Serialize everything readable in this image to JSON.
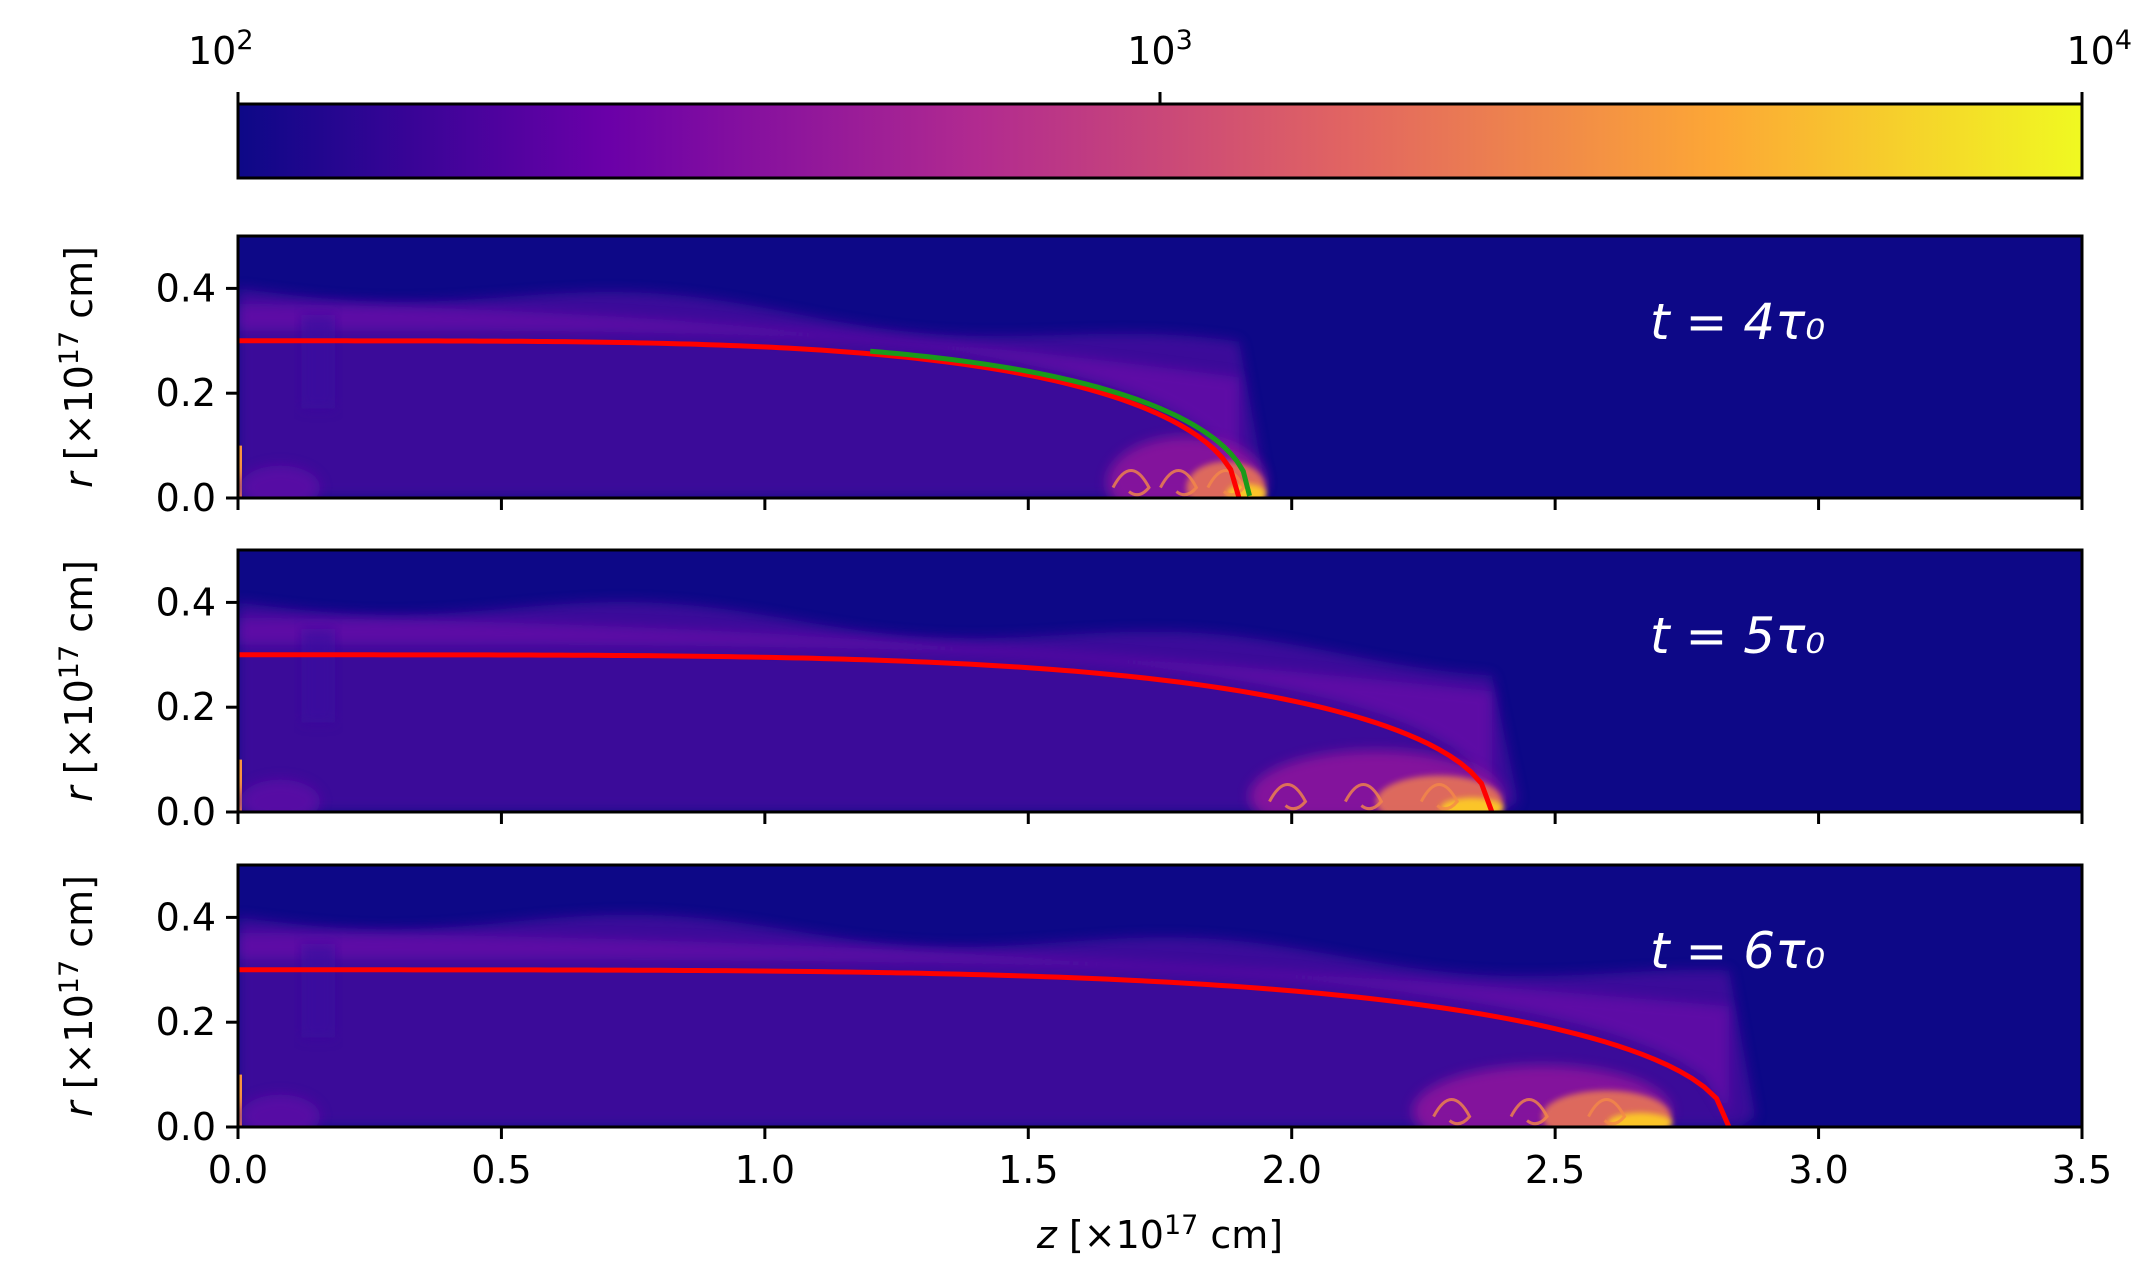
{
  "chart_data": {
    "type": "heatmap",
    "colormap": "plasma",
    "colorbar": {
      "scale": "log",
      "range": [
        100,
        10000
      ],
      "ticks": [
        {
          "value": 100,
          "base": "10",
          "exp": "2"
        },
        {
          "value": 1000,
          "base": "10",
          "exp": "3"
        },
        {
          "value": 10000,
          "base": "10",
          "exp": "4"
        }
      ],
      "colors": [
        "#0d0887",
        "#6a00a8",
        "#b12a90",
        "#e16462",
        "#fca636",
        "#f0f921"
      ]
    },
    "xlabel": {
      "var": "z",
      "pre": " [×10",
      "exp": "17",
      "post": " cm]"
    },
    "ylabel": {
      "var": "r",
      "pre": " [×10",
      "exp": "17",
      "post": " cm]"
    },
    "xlim": [
      0,
      3.5
    ],
    "ylim": [
      0,
      0.5
    ],
    "xticks": [
      "0.0",
      "0.5",
      "1.0",
      "1.5",
      "2.0",
      "2.5",
      "3.0",
      "3.5"
    ],
    "yticks": [
      "0.0",
      "0.2",
      "0.4"
    ],
    "background_color": "#0d0887",
    "panels": [
      {
        "label": "t = 4τ₀",
        "front_z": 1.9,
        "analytic_curve": {
          "color": "#ff0000",
          "r0": 0.3,
          "z_end": 1.9
        },
        "secondary_curve": {
          "color": "#1a9a1a",
          "z_start": 1.2,
          "z_end": 1.92
        },
        "shocked_region": [
          1.65,
          1.95
        ]
      },
      {
        "label": "t = 5τ₀",
        "front_z": 2.38,
        "analytic_curve": {
          "color": "#ff0000",
          "r0": 0.3,
          "z_end": 2.38
        },
        "shocked_region": [
          1.92,
          2.4
        ]
      },
      {
        "label": "t = 6τ₀",
        "front_z": 2.83,
        "analytic_curve": {
          "color": "#ff0000",
          "r0": 0.3,
          "z_end": 2.83
        },
        "shocked_region": [
          2.23,
          2.72
        ]
      }
    ]
  }
}
